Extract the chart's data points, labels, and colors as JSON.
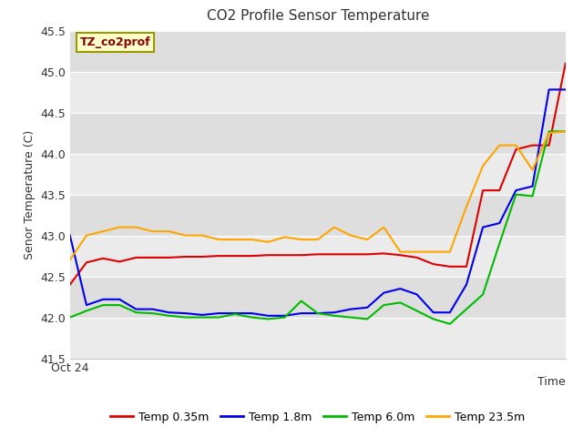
{
  "title": "CO2 Profile Sensor Temperature",
  "ylabel": "Senor Temperature (C)",
  "xlabel": "Time",
  "xlabel_bottom": "Oct 24",
  "ylim": [
    41.5,
    45.5
  ],
  "yticks": [
    41.5,
    42.0,
    42.5,
    43.0,
    43.5,
    44.0,
    44.5,
    45.0,
    45.5
  ],
  "annotation_text": "TZ_co2prof",
  "annotation_color": "#8B0000",
  "annotation_bg": "#FFFFCC",
  "annotation_border": "#999900",
  "bg_color_light": "#EBEBEB",
  "bg_color_dark": "#DEDEDE",
  "fig_bg": "#FFFFFF",
  "series_order": [
    "red",
    "blue",
    "green",
    "orange"
  ],
  "series": {
    "red": {
      "label": "Temp 0.35m",
      "color": "#DD0000",
      "y": [
        42.4,
        42.67,
        42.72,
        42.68,
        42.73,
        42.73,
        42.73,
        42.74,
        42.74,
        42.75,
        42.75,
        42.75,
        42.76,
        42.76,
        42.76,
        42.77,
        42.77,
        42.77,
        42.77,
        42.78,
        42.76,
        42.73,
        42.65,
        42.62,
        42.62,
        43.55,
        43.55,
        44.05,
        44.1,
        44.1,
        45.1
      ]
    },
    "blue": {
      "label": "Temp 1.8m",
      "color": "#0000EE",
      "y": [
        43.0,
        42.15,
        42.22,
        42.22,
        42.1,
        42.1,
        42.06,
        42.05,
        42.03,
        42.05,
        42.05,
        42.05,
        42.02,
        42.02,
        42.05,
        42.05,
        42.06,
        42.1,
        42.12,
        42.3,
        42.35,
        42.28,
        42.06,
        42.06,
        42.4,
        43.1,
        43.15,
        43.55,
        43.6,
        44.78,
        44.78
      ]
    },
    "green": {
      "label": "Temp 6.0m",
      "color": "#00BB00",
      "y": [
        42.0,
        42.08,
        42.15,
        42.15,
        42.06,
        42.05,
        42.02,
        42.0,
        42.0,
        42.0,
        42.04,
        42.0,
        41.98,
        42.0,
        42.2,
        42.05,
        42.02,
        42.0,
        41.98,
        42.15,
        42.18,
        42.08,
        41.98,
        41.92,
        42.1,
        42.28,
        42.9,
        43.5,
        43.48,
        44.27,
        44.27
      ]
    },
    "orange": {
      "label": "Temp 23.5m",
      "color": "#FFA500",
      "y": [
        42.7,
        43.0,
        43.05,
        43.1,
        43.1,
        43.05,
        43.05,
        43.0,
        43.0,
        42.95,
        42.95,
        42.95,
        42.92,
        42.98,
        42.95,
        42.95,
        43.1,
        43.0,
        42.95,
        43.1,
        42.8,
        42.8,
        42.8,
        42.8,
        43.35,
        43.85,
        44.1,
        44.1,
        43.8,
        44.25,
        44.27
      ]
    }
  }
}
